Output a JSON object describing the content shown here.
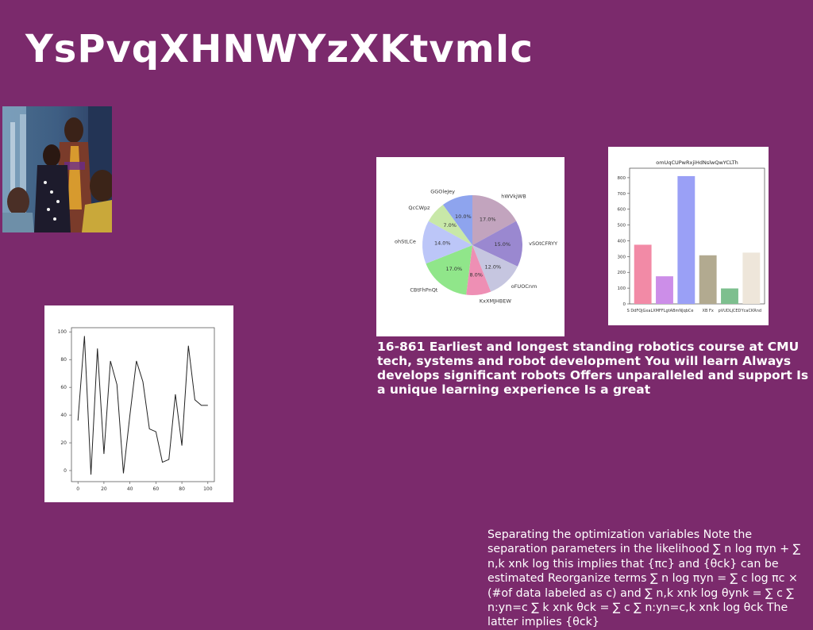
{
  "page": {
    "title": "YsPvqXHNWYzXKtvmIc",
    "mid_text": "16-861 Earliest and longest standing robotics course at CMU tech, systems and robot development You will learn Always develops significant robots Offers unparalleled and support Is a unique learning experience Is a great",
    "bottom_text": "Separating the optimization variables Note the separation parameters in the likelihood ∑ n log πyn + ∑ n,k xnk log this implies that {πc} and {θck} can be estimated Reorganize terms ∑ n log πyn = ∑ c log πc × (#of data labeled as c) and ∑ n,k xnk log θynk = ∑ c ∑ n:yn=c ∑ k xnk θck = ∑ c ∑ n:yn=c,k xnk log θck The latter implies {θck}"
  },
  "chart_data": [
    {
      "type": "pie",
      "title": "",
      "labels": [
        "hWVkjWB",
        "vSOtCFRYY",
        "oFUOCnm",
        "KxXMJHBEW",
        "CBtFhPnQt",
        "ohStLCe",
        "QcCWpz",
        "GGOleJey"
      ],
      "values": [
        17.0,
        15.0,
        12.0,
        8.0,
        17.0,
        14.0,
        7.0,
        10.0
      ],
      "pct_labels": [
        "17.0%",
        "15.0%",
        "12.0%",
        "8.0%",
        "17.0%",
        "14.0%",
        "7.0%",
        "10.0%"
      ],
      "colors": [
        "#c2a4be",
        "#9a88d0",
        "#c6c6e0",
        "#ee8fb4",
        "#90e68a",
        "#bcc6f8",
        "#c8e8a8",
        "#8ea4ee"
      ]
    },
    {
      "type": "bar",
      "title": "omUqCUPwRxjiHdNslwQwYCLTh",
      "categories": [
        "S DdFQjGxaLX",
        "MFFLgtABmNJqbCe",
        "",
        "XB Fx",
        "pVUDLjCED",
        "YcaCKRnd"
      ],
      "values": [
        375,
        175,
        810,
        308,
        98,
        325
      ],
      "ylim": [
        0,
        860
      ],
      "yticks": [
        0,
        100,
        200,
        300,
        400,
        500,
        600,
        700,
        800
      ],
      "colors": [
        "#f28aa6",
        "#cc8ee8",
        "#9aa0f6",
        "#b2aa90",
        "#7dbf8e",
        "#eee6da"
      ]
    },
    {
      "type": "line",
      "title": "",
      "x": [
        0,
        5,
        10,
        15,
        20,
        25,
        30,
        35,
        40,
        45,
        50,
        55,
        60,
        65,
        70,
        75,
        80,
        85,
        90,
        95,
        100
      ],
      "y": [
        36,
        97,
        -3,
        88,
        12,
        79,
        62,
        -2,
        40,
        79,
        64,
        30,
        28,
        6,
        8,
        55,
        18,
        90,
        51,
        47,
        47
      ],
      "xlim": [
        -5,
        105
      ],
      "ylim": [
        -8,
        103
      ],
      "xticks": [
        0,
        20,
        40,
        60,
        80,
        100
      ],
      "yticks": [
        0,
        20,
        40,
        60,
        80,
        100
      ],
      "color": "#222222"
    }
  ]
}
